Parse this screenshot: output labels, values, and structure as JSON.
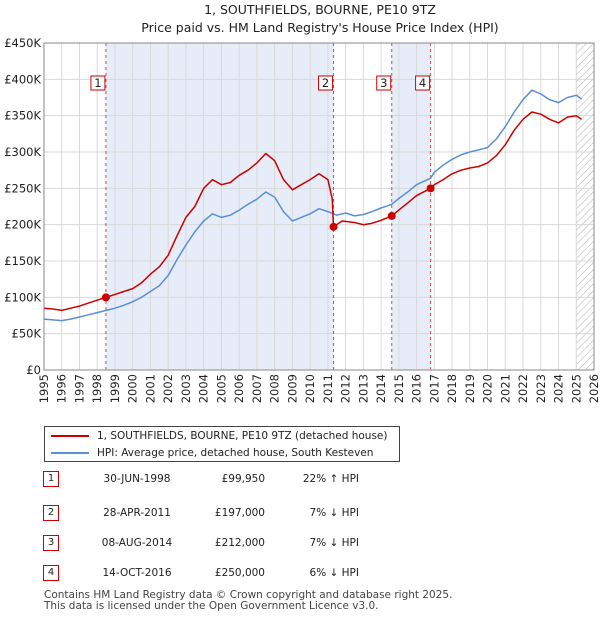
{
  "chart_data": {
    "type": "line",
    "title": "1, SOUTHFIELDS, BOURNE, PE10 9TZ",
    "subtitle": "Price paid vs. HM Land Registry's House Price Index (HPI)",
    "xlim": [
      1995,
      2026
    ],
    "ylim": [
      0,
      450000
    ],
    "x_ticks": [
      "1995",
      "1996",
      "1997",
      "1998",
      "1999",
      "2000",
      "2001",
      "2002",
      "2003",
      "2004",
      "2005",
      "2006",
      "2007",
      "2008",
      "2009",
      "2010",
      "2011",
      "2012",
      "2013",
      "2014",
      "2015",
      "2016",
      "2017",
      "2018",
      "2019",
      "2020",
      "2021",
      "2022",
      "2023",
      "2024",
      "2025",
      "2026"
    ],
    "y_ticks": [
      {
        "value": 0,
        "label": "£0"
      },
      {
        "value": 50000,
        "label": "£50K"
      },
      {
        "value": 100000,
        "label": "£100K"
      },
      {
        "value": 150000,
        "label": "£150K"
      },
      {
        "value": 200000,
        "label": "£200K"
      },
      {
        "value": 250000,
        "label": "£250K"
      },
      {
        "value": 300000,
        "label": "£300K"
      },
      {
        "value": 350000,
        "label": "£350K"
      },
      {
        "value": 400000,
        "label": "£400K"
      },
      {
        "value": 450000,
        "label": "£450K"
      }
    ],
    "grid": true,
    "hatch_from": 2025.0,
    "shaded_periods": [
      [
        1998.49,
        2011.32
      ],
      [
        2014.6,
        2016.79
      ]
    ],
    "series": [
      {
        "name": "1, SOUTHFIELDS, BOURNE, PE10 9TZ (detached house)",
        "color": "#cc0000",
        "points": [
          [
            1995.0,
            85000
          ],
          [
            1995.5,
            84000
          ],
          [
            1996.0,
            82000
          ],
          [
            1996.5,
            85000
          ],
          [
            1997.0,
            88000
          ],
          [
            1997.5,
            92000
          ],
          [
            1998.0,
            96000
          ],
          [
            1998.49,
            99950
          ],
          [
            1999.0,
            104000
          ],
          [
            1999.5,
            108000
          ],
          [
            2000.0,
            112000
          ],
          [
            2000.5,
            120000
          ],
          [
            2001.0,
            132000
          ],
          [
            2001.5,
            142000
          ],
          [
            2002.0,
            158000
          ],
          [
            2002.5,
            185000
          ],
          [
            2003.0,
            210000
          ],
          [
            2003.5,
            225000
          ],
          [
            2004.0,
            250000
          ],
          [
            2004.5,
            262000
          ],
          [
            2005.0,
            255000
          ],
          [
            2005.5,
            258000
          ],
          [
            2006.0,
            268000
          ],
          [
            2006.5,
            275000
          ],
          [
            2007.0,
            285000
          ],
          [
            2007.5,
            298000
          ],
          [
            2008.0,
            288000
          ],
          [
            2008.5,
            262000
          ],
          [
            2009.0,
            248000
          ],
          [
            2009.5,
            255000
          ],
          [
            2010.0,
            262000
          ],
          [
            2010.5,
            270000
          ],
          [
            2011.0,
            262000
          ],
          [
            2011.25,
            235000
          ],
          [
            2011.32,
            197000
          ],
          [
            2011.8,
            205000
          ],
          [
            2012.5,
            203000
          ],
          [
            2013.0,
            200000
          ],
          [
            2013.5,
            202000
          ],
          [
            2014.0,
            206000
          ],
          [
            2014.6,
            212000
          ],
          [
            2015.0,
            220000
          ],
          [
            2015.5,
            230000
          ],
          [
            2016.0,
            240000
          ],
          [
            2016.79,
            250000
          ],
          [
            2017.0,
            255000
          ],
          [
            2017.5,
            262000
          ],
          [
            2018.0,
            270000
          ],
          [
            2018.5,
            275000
          ],
          [
            2019.0,
            278000
          ],
          [
            2019.5,
            280000
          ],
          [
            2020.0,
            285000
          ],
          [
            2020.5,
            295000
          ],
          [
            2021.0,
            310000
          ],
          [
            2021.5,
            330000
          ],
          [
            2022.0,
            345000
          ],
          [
            2022.5,
            355000
          ],
          [
            2023.0,
            352000
          ],
          [
            2023.5,
            345000
          ],
          [
            2024.0,
            340000
          ],
          [
            2024.5,
            348000
          ],
          [
            2025.0,
            350000
          ],
          [
            2025.3,
            345000
          ]
        ]
      },
      {
        "name": "HPI: Average price, detached house, South Kesteven",
        "color": "#5b8fd4",
        "points": [
          [
            1995.0,
            70000
          ],
          [
            1995.5,
            69000
          ],
          [
            1996.0,
            68000
          ],
          [
            1996.5,
            70000
          ],
          [
            1997.0,
            73000
          ],
          [
            1997.5,
            76000
          ],
          [
            1998.0,
            79000
          ],
          [
            1998.5,
            82000
          ],
          [
            1999.0,
            85000
          ],
          [
            1999.5,
            89000
          ],
          [
            2000.0,
            94000
          ],
          [
            2000.5,
            100000
          ],
          [
            2001.0,
            108000
          ],
          [
            2001.5,
            116000
          ],
          [
            2002.0,
            130000
          ],
          [
            2002.5,
            152000
          ],
          [
            2003.0,
            172000
          ],
          [
            2003.5,
            190000
          ],
          [
            2004.0,
            205000
          ],
          [
            2004.5,
            215000
          ],
          [
            2005.0,
            210000
          ],
          [
            2005.5,
            213000
          ],
          [
            2006.0,
            220000
          ],
          [
            2006.5,
            228000
          ],
          [
            2007.0,
            235000
          ],
          [
            2007.5,
            245000
          ],
          [
            2008.0,
            238000
          ],
          [
            2008.5,
            218000
          ],
          [
            2009.0,
            205000
          ],
          [
            2009.5,
            210000
          ],
          [
            2010.0,
            215000
          ],
          [
            2010.5,
            222000
          ],
          [
            2011.0,
            218000
          ],
          [
            2011.5,
            213000
          ],
          [
            2012.0,
            216000
          ],
          [
            2012.5,
            212000
          ],
          [
            2013.0,
            214000
          ],
          [
            2013.5,
            218000
          ],
          [
            2014.0,
            223000
          ],
          [
            2014.6,
            228000
          ],
          [
            2015.0,
            236000
          ],
          [
            2015.5,
            245000
          ],
          [
            2016.0,
            255000
          ],
          [
            2016.79,
            264000
          ],
          [
            2017.0,
            272000
          ],
          [
            2017.5,
            282000
          ],
          [
            2018.0,
            290000
          ],
          [
            2018.5,
            296000
          ],
          [
            2019.0,
            300000
          ],
          [
            2019.5,
            303000
          ],
          [
            2020.0,
            306000
          ],
          [
            2020.5,
            318000
          ],
          [
            2021.0,
            335000
          ],
          [
            2021.5,
            355000
          ],
          [
            2022.0,
            372000
          ],
          [
            2022.5,
            385000
          ],
          [
            2023.0,
            380000
          ],
          [
            2023.5,
            372000
          ],
          [
            2024.0,
            368000
          ],
          [
            2024.5,
            375000
          ],
          [
            2025.0,
            378000
          ],
          [
            2025.3,
            373000
          ]
        ]
      }
    ],
    "markers": [
      {
        "label": "1",
        "x": 1998.49,
        "price": 99950
      },
      {
        "label": "2",
        "x": 2011.32,
        "price": 197000
      },
      {
        "label": "3",
        "x": 2014.6,
        "price": 212000
      },
      {
        "label": "4",
        "x": 2016.79,
        "price": 250000
      }
    ]
  },
  "legend": {
    "items": [
      {
        "label": "1, SOUTHFIELDS, BOURNE, PE10 9TZ (detached house)",
        "color": "#cc0000"
      },
      {
        "label": "HPI: Average price, detached house, South Kesteven",
        "color": "#5b8fd4"
      }
    ]
  },
  "sales": [
    {
      "num": "1",
      "date": "30-JUN-1998",
      "price": "£99,950",
      "pct": "22% ↑ HPI"
    },
    {
      "num": "2",
      "date": "28-APR-2011",
      "price": "£197,000",
      "pct": "7% ↓ HPI"
    },
    {
      "num": "3",
      "date": "08-AUG-2014",
      "price": "£212,000",
      "pct": "7% ↓ HPI"
    },
    {
      "num": "4",
      "date": "14-OCT-2016",
      "price": "£250,000",
      "pct": "6% ↓ HPI"
    }
  ],
  "footer": {
    "line1": "Contains HM Land Registry data © Crown copyright and database right 2025.",
    "line2": "This data is licensed under the Open Government Licence v3.0."
  }
}
